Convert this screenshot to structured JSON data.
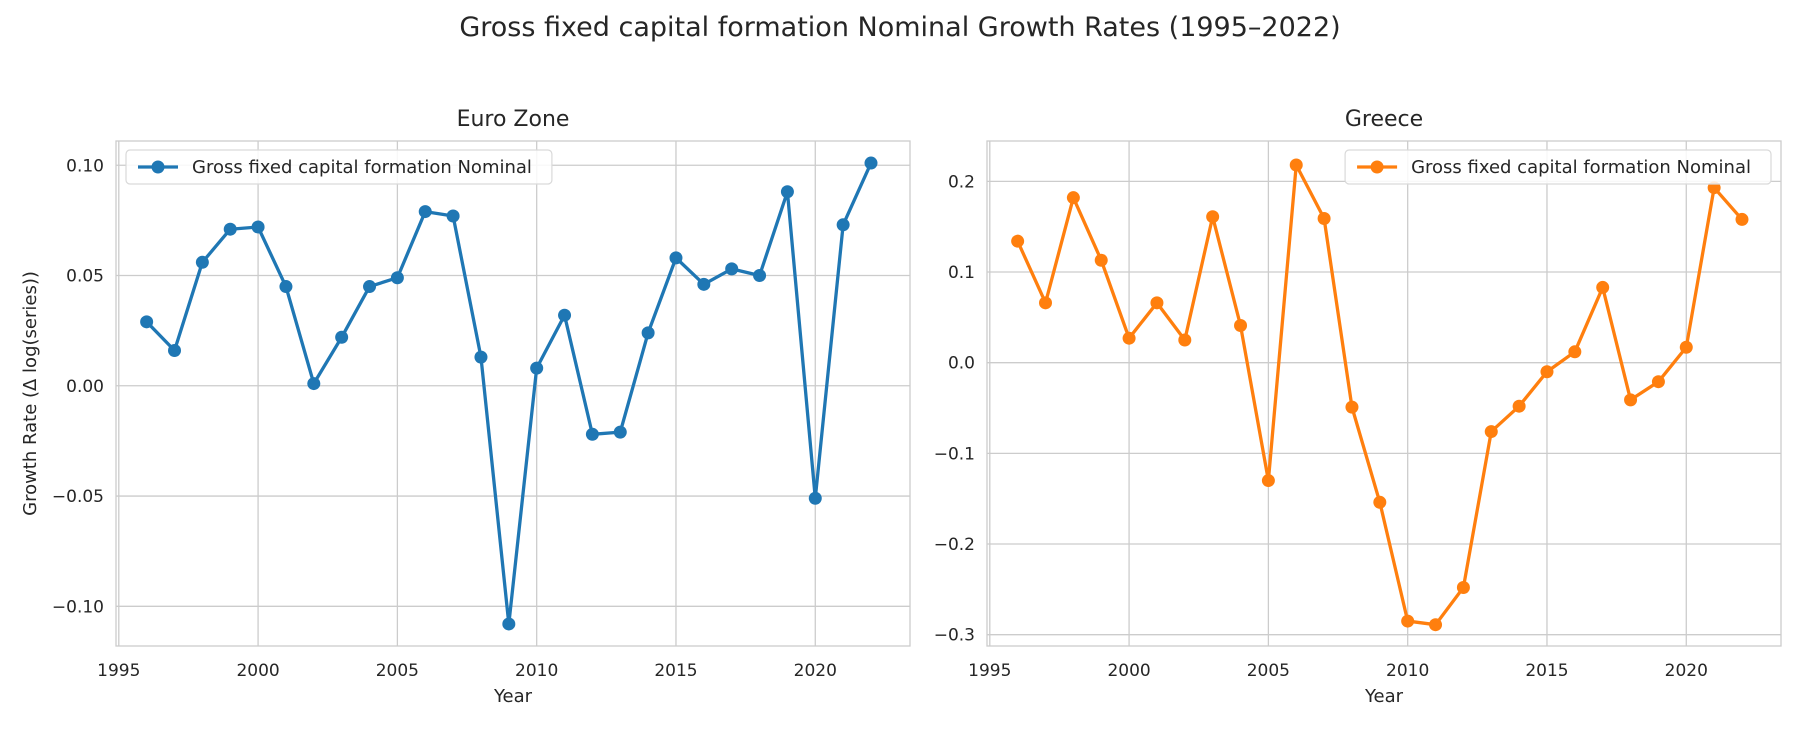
{
  "figure": {
    "title": "Gross fixed capital formation Nominal Growth Rates (1995–2022)"
  },
  "chart_data": [
    {
      "type": "line",
      "title": "Euro Zone",
      "xlabel": "Year",
      "ylabel": "Growth Rate (Δ log(series))",
      "xlim": [
        1994.9,
        2023.4
      ],
      "ylim": [
        -0.118,
        0.111
      ],
      "xticks": [
        1995,
        2000,
        2005,
        2010,
        2015,
        2020
      ],
      "yticks": [
        -0.1,
        -0.05,
        0.0,
        0.05,
        0.1
      ],
      "ytick_labels": [
        "−0.10",
        "−0.05",
        "0.00",
        "0.05",
        "0.10"
      ],
      "grid": true,
      "legend_position": "upper-left",
      "color": "#1f77b4",
      "series": [
        {
          "name": "Gross fixed capital formation Nominal",
          "x": [
            1996,
            1997,
            1998,
            1999,
            2000,
            2001,
            2002,
            2003,
            2004,
            2005,
            2006,
            2007,
            2008,
            2009,
            2010,
            2011,
            2012,
            2013,
            2014,
            2015,
            2016,
            2017,
            2018,
            2019,
            2020,
            2021,
            2022
          ],
          "y": [
            0.029,
            0.016,
            0.056,
            0.071,
            0.072,
            0.045,
            0.001,
            0.022,
            0.045,
            0.049,
            0.079,
            0.077,
            0.013,
            -0.108,
            0.008,
            0.032,
            -0.022,
            -0.021,
            0.024,
            0.058,
            0.046,
            0.053,
            0.05,
            0.088,
            -0.051,
            0.073,
            0.101
          ]
        }
      ]
    },
    {
      "type": "line",
      "title": "Greece",
      "xlabel": "Year",
      "ylabel": "",
      "xlim": [
        1994.9,
        2023.4
      ],
      "ylim": [
        -0.3125,
        0.2445
      ],
      "xticks": [
        1995,
        2000,
        2005,
        2010,
        2015,
        2020
      ],
      "yticks": [
        -0.3,
        -0.2,
        -0.1,
        0.0,
        0.1,
        0.2
      ],
      "ytick_labels": [
        "−0.3",
        "−0.2",
        "−0.1",
        "0.0",
        "0.1",
        "0.2"
      ],
      "grid": true,
      "legend_position": "upper-right",
      "color": "#ff7f0e",
      "series": [
        {
          "name": "Gross fixed capital formation Nominal",
          "x": [
            1996,
            1997,
            1998,
            1999,
            2000,
            2001,
            2002,
            2003,
            2004,
            2005,
            2006,
            2007,
            2008,
            2009,
            2010,
            2011,
            2012,
            2013,
            2014,
            2015,
            2016,
            2017,
            2018,
            2019,
            2020,
            2021,
            2022
          ],
          "y": [
            0.134,
            0.066,
            0.182,
            0.113,
            0.027,
            0.066,
            0.025,
            0.161,
            0.041,
            -0.13,
            0.218,
            0.159,
            -0.049,
            -0.154,
            -0.285,
            -0.289,
            -0.248,
            -0.076,
            -0.048,
            -0.01,
            0.012,
            0.083,
            -0.041,
            -0.021,
            0.017,
            0.193,
            0.158
          ]
        }
      ]
    }
  ]
}
